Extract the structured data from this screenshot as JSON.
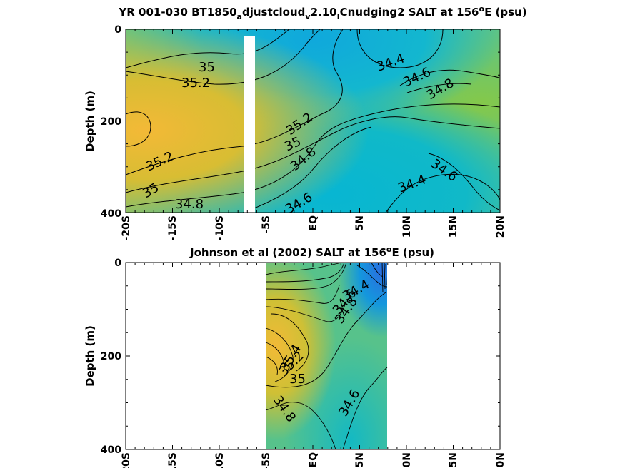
{
  "chart_data": [
    {
      "type": "heatmap",
      "title_parts": [
        "YR 001-030 BT1850",
        "a",
        "djustcloud",
        "v",
        "2.10",
        "I",
        "Cnudging2 SALT at 156",
        "o",
        "E (psu)"
      ],
      "ylabel": "Depth (m)",
      "xlim": [
        -20,
        20
      ],
      "ylim": [
        0,
        400
      ],
      "x_tick_labels": [
        "-20S",
        "-15S",
        "-10S",
        "-5S",
        "EQ",
        "5N",
        "10N",
        "15N",
        "20N"
      ],
      "x_tick_values": [
        -20,
        -15,
        -10,
        -5,
        0,
        5,
        10,
        15,
        20
      ],
      "y_tick_labels": [
        "0",
        "200",
        "400"
      ],
      "y_tick_values": [
        0,
        200,
        400
      ],
      "colormap": [
        "#1e6fd6",
        "#0fb4d4",
        "#2fbfa4",
        "#7cc64c",
        "#c9bf35",
        "#f3b937"
      ],
      "contour_labels": [
        {
          "text": "35",
          "x": -11,
          "y": 80,
          "angle": 0
        },
        {
          "text": "35.2",
          "x": -12,
          "y": 112,
          "angle": 0
        },
        {
          "text": "34.4",
          "x": 6,
          "y": 70,
          "angle": -20
        },
        {
          "text": "34.6",
          "x": 9.5,
          "y": 100,
          "angle": -25
        },
        {
          "text": "34.8",
          "x": 12.5,
          "y": 125,
          "angle": -30
        },
        {
          "text": "35.2",
          "x": -2,
          "y": 205,
          "angle": -35
        },
        {
          "text": "35",
          "x": -3.5,
          "y": 245,
          "angle": -25
        },
        {
          "text": "34.8",
          "x": -1.5,
          "y": 280,
          "angle": -40
        },
        {
          "text": "35.2",
          "x": -16.5,
          "y": 285,
          "angle": -25
        },
        {
          "text": "35",
          "x": -17.5,
          "y": 350,
          "angle": -30
        },
        {
          "text": "34.8",
          "x": -13.5,
          "y": 375,
          "angle": 0
        },
        {
          "text": "34.6",
          "x": -1,
          "y": 375,
          "angle": -30
        },
        {
          "text": "34.4",
          "x": 8.5,
          "y": 330,
          "angle": -20
        },
        {
          "text": "34.6",
          "x": 15,
          "y": 300,
          "angle": 35
        }
      ],
      "masked_band_x": [
        -7.5,
        -6.5
      ]
    },
    {
      "type": "heatmap",
      "title_parts": [
        "Johnson et al (2002) SALT at 156",
        "o",
        "E (psu)"
      ],
      "ylabel": "Depth (m)",
      "xlim": [
        -20,
        20
      ],
      "ylim": [
        0,
        400
      ],
      "x_tick_labels": [
        "-20S",
        "-15S",
        "-10S",
        "-5S",
        "EQ",
        "5N",
        "10N",
        "15N",
        "20N"
      ],
      "x_tick_values": [
        -20,
        -15,
        -10,
        -5,
        0,
        5,
        10,
        15,
        20
      ],
      "y_tick_labels": [
        "0",
        "200",
        "400"
      ],
      "y_tick_values": [
        0,
        200,
        400
      ],
      "data_x_range": [
        -5,
        8
      ],
      "contour_labels": [
        {
          "text": "34.4",
          "x": 5,
          "y": 60,
          "angle": -30
        },
        {
          "text": "34.6",
          "x": 4.5,
          "y": 90,
          "angle": -50
        },
        {
          "text": "34.8",
          "x": 4.5,
          "y": 115,
          "angle": -55
        },
        {
          "text": "35.4",
          "x": -1.5,
          "y": 200,
          "angle": -60
        },
        {
          "text": "35.2",
          "x": -2.5,
          "y": 225,
          "angle": -45
        },
        {
          "text": "35",
          "x": -1.5,
          "y": 250,
          "angle": 0
        },
        {
          "text": "34.8",
          "x": -2.5,
          "y": 315,
          "angle": 55
        },
        {
          "text": "34.6",
          "x": 4,
          "y": 300,
          "angle": -60
        }
      ]
    }
  ]
}
